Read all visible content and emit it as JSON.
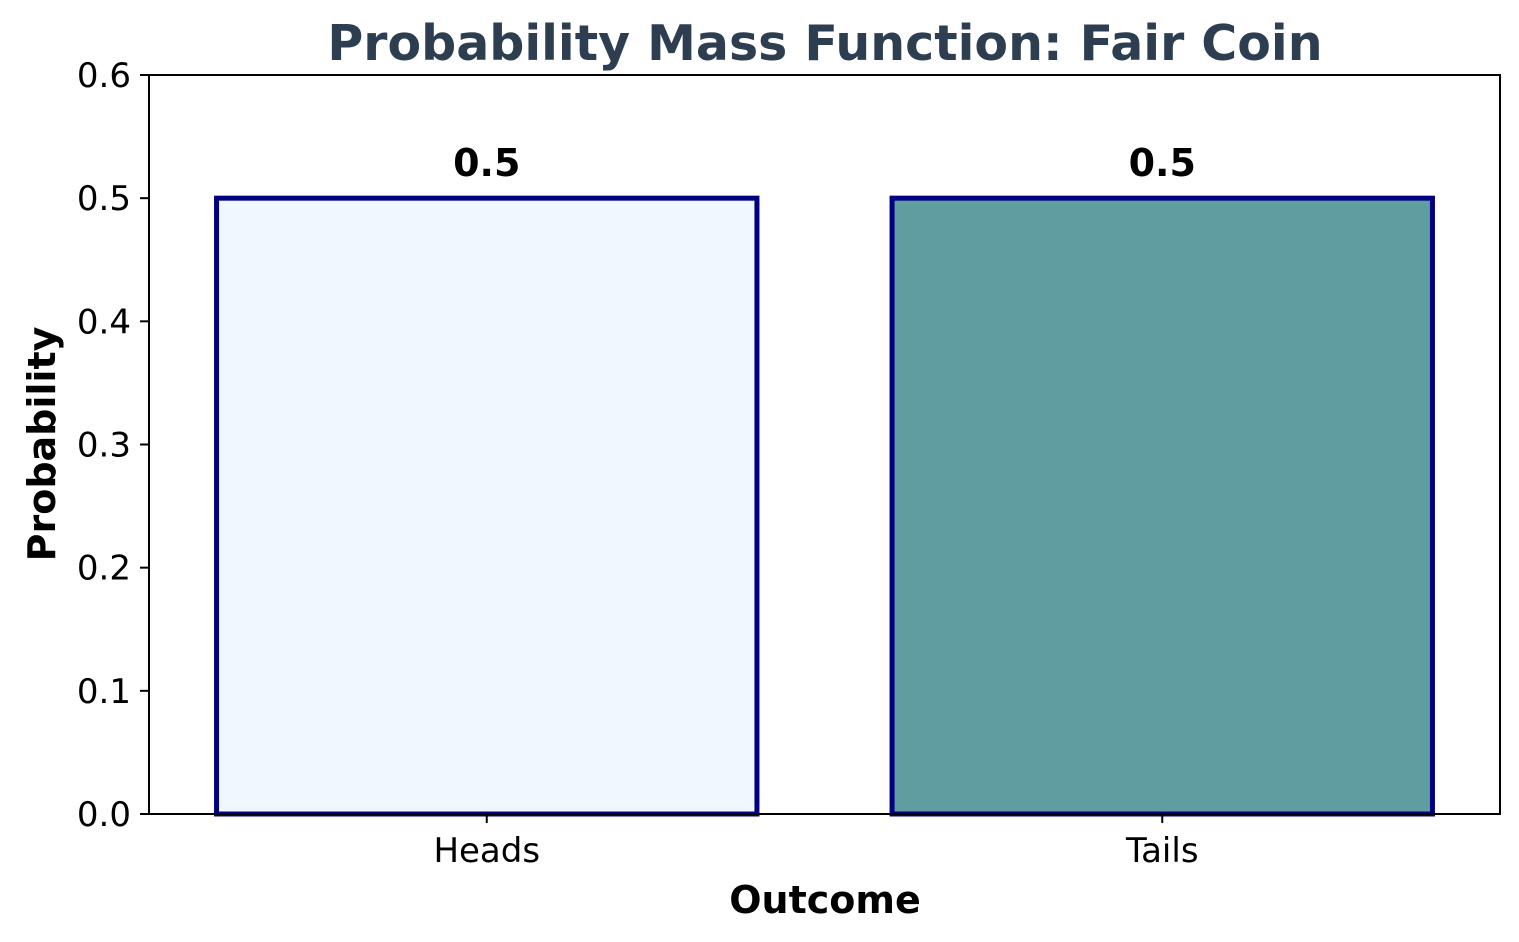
{
  "chart_data": {
    "type": "bar",
    "title": "Probability Mass Function: Fair Coin",
    "xlabel": "Outcome",
    "ylabel": "Probability",
    "categories": [
      "Heads",
      "Tails"
    ],
    "values": [
      0.5,
      0.5
    ],
    "value_labels": [
      "0.5",
      "0.5"
    ],
    "ylim": [
      0,
      0.6
    ],
    "yticks": [
      0.0,
      0.1,
      0.2,
      0.3,
      0.4,
      0.5,
      0.6
    ],
    "ytick_labels": [
      "0.0",
      "0.1",
      "0.2",
      "0.3",
      "0.4",
      "0.5",
      "0.6"
    ],
    "grid": false,
    "legend": "none",
    "colors": {
      "title": "#2c3e50",
      "bar_fills": [
        "#f0f8ff",
        "#5f9ea0"
      ],
      "bar_edge": "#000080",
      "axes": "#000000"
    }
  }
}
